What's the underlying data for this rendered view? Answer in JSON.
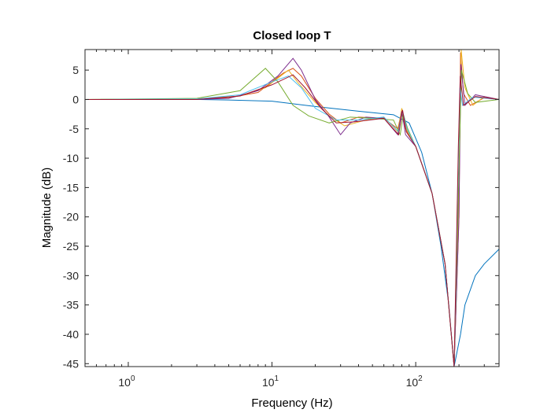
{
  "chart_data": {
    "type": "line",
    "title": "Closed loop T",
    "xlabel": "Frequency  (Hz)",
    "ylabel": "Magnitude (dB)",
    "xscale": "log",
    "xlim": [
      0.5,
      380
    ],
    "ylim": [
      -45.5,
      8.5
    ],
    "grid": false,
    "legend": "none",
    "x_ticks": [
      {
        "value": 1,
        "base": "10",
        "exp": "0"
      },
      {
        "value": 10,
        "base": "10",
        "exp": "1"
      },
      {
        "value": 100,
        "base": "10",
        "exp": "2"
      }
    ],
    "y_ticks": [
      5,
      0,
      -5,
      -10,
      -15,
      -20,
      -25,
      -30,
      -35,
      -40,
      -45
    ],
    "series": [
      {
        "color": "#0072BD",
        "values": [
          [
            0.5,
            0
          ],
          [
            3,
            0
          ],
          [
            5,
            -0.1
          ],
          [
            10,
            -0.3
          ],
          [
            20,
            -1.2
          ],
          [
            40,
            -2
          ],
          [
            70,
            -2.6
          ],
          [
            90,
            -4
          ],
          [
            110,
            -9
          ],
          [
            130,
            -16
          ],
          [
            150,
            -25
          ],
          [
            170,
            -35
          ],
          [
            185,
            -45.5
          ],
          [
            205,
            -40
          ],
          [
            220,
            -35
          ],
          [
            260,
            -30
          ],
          [
            300,
            -28
          ],
          [
            380,
            -25.5
          ]
        ]
      },
      {
        "color": "#D95319",
        "values": [
          [
            0.5,
            0
          ],
          [
            3,
            0.1
          ],
          [
            5,
            0.3
          ],
          [
            8,
            1.2
          ],
          [
            12,
            4.5
          ],
          [
            14,
            5.3
          ],
          [
            16,
            4
          ],
          [
            20,
            0.2
          ],
          [
            25,
            -2.5
          ],
          [
            30,
            -4
          ],
          [
            40,
            -3
          ],
          [
            60,
            -3.2
          ],
          [
            75,
            -5
          ],
          [
            80,
            -2
          ],
          [
            85,
            -5
          ],
          [
            100,
            -8
          ],
          [
            130,
            -16
          ],
          [
            160,
            -28
          ],
          [
            185,
            -45.5
          ],
          [
            200,
            -20
          ],
          [
            205,
            8
          ],
          [
            215,
            1
          ],
          [
            240,
            -1
          ],
          [
            300,
            0.3
          ],
          [
            380,
            0
          ]
        ]
      },
      {
        "color": "#EDB120",
        "values": [
          [
            0.5,
            0
          ],
          [
            3,
            0.1
          ],
          [
            6,
            0.6
          ],
          [
            9,
            2
          ],
          [
            13,
            5
          ],
          [
            15,
            3
          ],
          [
            20,
            -0.5
          ],
          [
            25,
            -2.8
          ],
          [
            32,
            -4.5
          ],
          [
            45,
            -3.5
          ],
          [
            60,
            -3
          ],
          [
            75,
            -5.5
          ],
          [
            80,
            -1.5
          ],
          [
            86,
            -5
          ],
          [
            100,
            -8
          ],
          [
            130,
            -16
          ],
          [
            160,
            -28
          ],
          [
            185,
            -45.5
          ],
          [
            200,
            -15
          ],
          [
            207,
            8.5
          ],
          [
            220,
            2
          ],
          [
            250,
            -1
          ],
          [
            300,
            0.5
          ],
          [
            380,
            0
          ]
        ]
      },
      {
        "color": "#7E2F8E",
        "values": [
          [
            0.5,
            0
          ],
          [
            3,
            0
          ],
          [
            5,
            0.2
          ],
          [
            8,
            1.5
          ],
          [
            11,
            4
          ],
          [
            14,
            7
          ],
          [
            16,
            5
          ],
          [
            20,
            0
          ],
          [
            25,
            -3
          ],
          [
            30,
            -6
          ],
          [
            35,
            -4
          ],
          [
            45,
            -3
          ],
          [
            60,
            -3.2
          ],
          [
            75,
            -6
          ],
          [
            80,
            -2
          ],
          [
            85,
            -6
          ],
          [
            100,
            -8
          ],
          [
            130,
            -16
          ],
          [
            160,
            -28
          ],
          [
            185,
            -45.5
          ],
          [
            200,
            -20
          ],
          [
            206,
            6
          ],
          [
            220,
            -1
          ],
          [
            260,
            0.8
          ],
          [
            380,
            0
          ]
        ]
      },
      {
        "color": "#77AC30",
        "values": [
          [
            0.5,
            0
          ],
          [
            3,
            0.2
          ],
          [
            6,
            1.5
          ],
          [
            9,
            5.3
          ],
          [
            11,
            3
          ],
          [
            14,
            -1
          ],
          [
            18,
            -2.8
          ],
          [
            25,
            -4
          ],
          [
            35,
            -3
          ],
          [
            50,
            -3.2
          ],
          [
            70,
            -3.5
          ],
          [
            78,
            -6
          ],
          [
            82,
            -2.5
          ],
          [
            88,
            -5
          ],
          [
            100,
            -8
          ],
          [
            130,
            -16
          ],
          [
            160,
            -28
          ],
          [
            185,
            -45.5
          ],
          [
            200,
            -12
          ],
          [
            208,
            5
          ],
          [
            230,
            1
          ],
          [
            260,
            -0.5
          ],
          [
            380,
            0
          ]
        ]
      },
      {
        "color": "#4DBEEE",
        "values": [
          [
            0.5,
            0
          ],
          [
            3,
            0.1
          ],
          [
            6,
            0.8
          ],
          [
            10,
            3
          ],
          [
            13,
            4
          ],
          [
            16,
            2
          ],
          [
            20,
            -1.5
          ],
          [
            28,
            -3.5
          ],
          [
            40,
            -3.5
          ],
          [
            60,
            -3
          ],
          [
            76,
            -5.5
          ],
          [
            81,
            -2
          ],
          [
            87,
            -5
          ],
          [
            100,
            -8
          ],
          [
            130,
            -16
          ],
          [
            160,
            -28
          ],
          [
            185,
            -45.5
          ],
          [
            203,
            2
          ],
          [
            212,
            -1
          ],
          [
            250,
            0.4
          ],
          [
            380,
            0
          ]
        ]
      },
      {
        "color": "#A2142F",
        "values": [
          [
            0.5,
            0
          ],
          [
            3,
            0
          ],
          [
            6,
            0.6
          ],
          [
            10,
            2.5
          ],
          [
            14,
            4.2
          ],
          [
            17,
            2
          ],
          [
            22,
            -1.5
          ],
          [
            28,
            -4
          ],
          [
            38,
            -3.8
          ],
          [
            60,
            -3.2
          ],
          [
            76,
            -6
          ],
          [
            81,
            -1.8
          ],
          [
            86,
            -5.5
          ],
          [
            100,
            -8
          ],
          [
            130,
            -16
          ],
          [
            160,
            -28
          ],
          [
            185,
            -45.5
          ],
          [
            198,
            -8
          ],
          [
            204,
            4
          ],
          [
            215,
            -1
          ],
          [
            260,
            0.5
          ],
          [
            380,
            0
          ]
        ]
      }
    ]
  }
}
